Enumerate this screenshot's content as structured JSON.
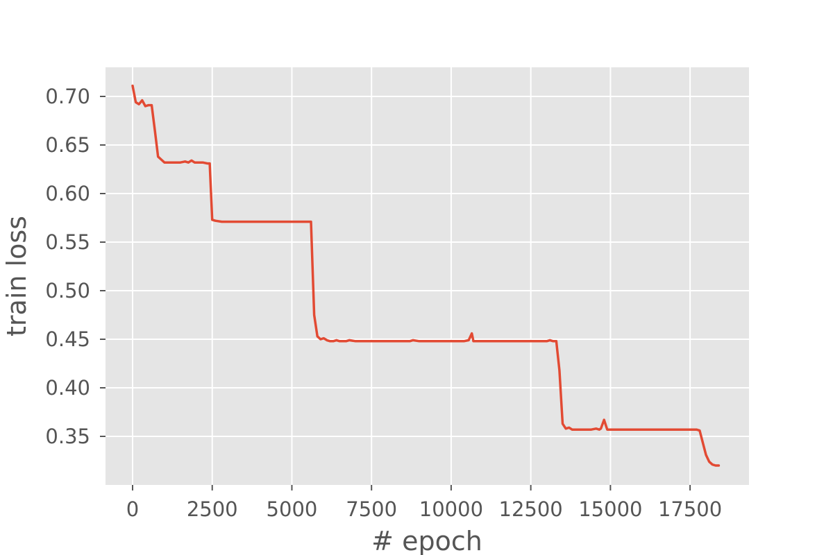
{
  "chart_data": {
    "type": "line",
    "title": "",
    "xlabel": "# epoch",
    "ylabel": "train loss",
    "xlim": [
      -850,
      19350
    ],
    "ylim": [
      0.3,
      0.73
    ],
    "xticks": [
      0,
      2500,
      5000,
      7500,
      10000,
      12500,
      15000,
      17500
    ],
    "xtick_labels": [
      "0",
      "2500",
      "5000",
      "7500",
      "10000",
      "12500",
      "15000",
      "17500"
    ],
    "yticks": [
      0.35,
      0.4,
      0.45,
      0.5,
      0.55,
      0.6,
      0.65,
      0.7
    ],
    "ytick_labels": [
      "0.35",
      "0.40",
      "0.45",
      "0.50",
      "0.55",
      "0.60",
      "0.65",
      "0.70"
    ],
    "grid": true,
    "background": "#e5e5e5",
    "grid_color": "#ffffff",
    "series": [
      {
        "color": "#e24a33",
        "x": [
          0,
          100,
          200,
          300,
          400,
          500,
          600,
          700,
          800,
          900,
          1000,
          1100,
          1300,
          1500,
          1650,
          1750,
          1850,
          1950,
          2050,
          2200,
          2350,
          2420,
          2500,
          2600,
          2800,
          3500,
          4200,
          5000,
          5600,
          5700,
          5800,
          5900,
          6000,
          6100,
          6200,
          6300,
          6400,
          6500,
          6600,
          6700,
          6800,
          7000,
          8000,
          8700,
          8800,
          9000,
          10000,
          10400,
          10550,
          10650,
          10700,
          11000,
          12000,
          13000,
          13100,
          13200,
          13300,
          13400,
          13500,
          13600,
          13700,
          13800,
          13900,
          14000,
          14200,
          14400,
          14550,
          14650,
          14700,
          14800,
          14900,
          15000,
          15200,
          15500,
          16000,
          16500,
          17000,
          17300,
          17500,
          17700,
          17800,
          18000,
          18100,
          18200,
          18300,
          18400
        ],
        "values": [
          0.711,
          0.694,
          0.692,
          0.696,
          0.69,
          0.691,
          0.691,
          0.665,
          0.638,
          0.635,
          0.632,
          0.632,
          0.632,
          0.632,
          0.633,
          0.632,
          0.634,
          0.632,
          0.632,
          0.632,
          0.631,
          0.631,
          0.573,
          0.572,
          0.571,
          0.571,
          0.571,
          0.571,
          0.571,
          0.475,
          0.453,
          0.45,
          0.451,
          0.449,
          0.448,
          0.448,
          0.449,
          0.448,
          0.448,
          0.448,
          0.449,
          0.448,
          0.448,
          0.448,
          0.449,
          0.448,
          0.448,
          0.448,
          0.449,
          0.456,
          0.448,
          0.448,
          0.448,
          0.448,
          0.449,
          0.448,
          0.448,
          0.418,
          0.363,
          0.358,
          0.359,
          0.357,
          0.357,
          0.357,
          0.357,
          0.357,
          0.358,
          0.357,
          0.358,
          0.367,
          0.357,
          0.357,
          0.357,
          0.357,
          0.357,
          0.357,
          0.357,
          0.357,
          0.357,
          0.357,
          0.356,
          0.331,
          0.324,
          0.321,
          0.32,
          0.32
        ]
      }
    ]
  }
}
